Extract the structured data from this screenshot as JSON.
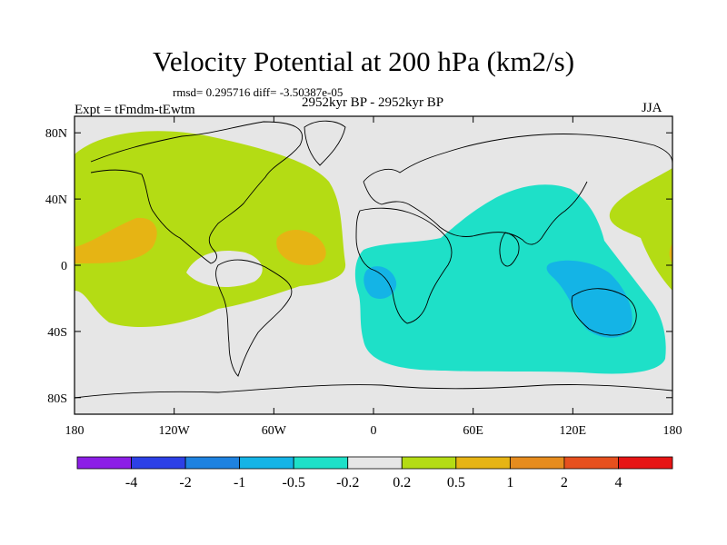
{
  "title": "Velocity Potential at 200 hPa (km2/s)",
  "subtitle_stats": "rmsd= 0.295716 diff= -3.50387e-05",
  "period": "2952kyr BP - 2952kyr BP",
  "experiment": "Expt = tFmdm-tEwtm",
  "season": "JJA",
  "map": {
    "lon_range": [
      -180,
      180
    ],
    "lat_range": [
      -90,
      90
    ],
    "x_ticks": [
      "180",
      "120W",
      "60W",
      "0",
      "60E",
      "120E",
      "180"
    ],
    "y_ticks": [
      "80N",
      "40N",
      "0",
      "40S",
      "80S"
    ],
    "y_tick_lats": [
      80,
      40,
      0,
      -40,
      -80
    ]
  },
  "colorbar": {
    "colors": [
      "#8c1ee6",
      "#2d40e6",
      "#1e82e0",
      "#14b4e6",
      "#1ee0c8",
      "#e6e6e6",
      "#b4dc14",
      "#e6b414",
      "#e68c1e",
      "#e6501e",
      "#e61414"
    ],
    "labels": [
      "-4",
      "-2",
      "-1",
      "-0.5",
      "-0.2",
      "0.2",
      "0.5",
      "1",
      "2",
      "4"
    ]
  },
  "colors": {
    "positive_fill": "#b4dc14",
    "positive_core": "#e6b414",
    "negative_fill": "#1ee0c8",
    "negative_core": "#14b4e6",
    "neutral": "#e6e6e6"
  }
}
